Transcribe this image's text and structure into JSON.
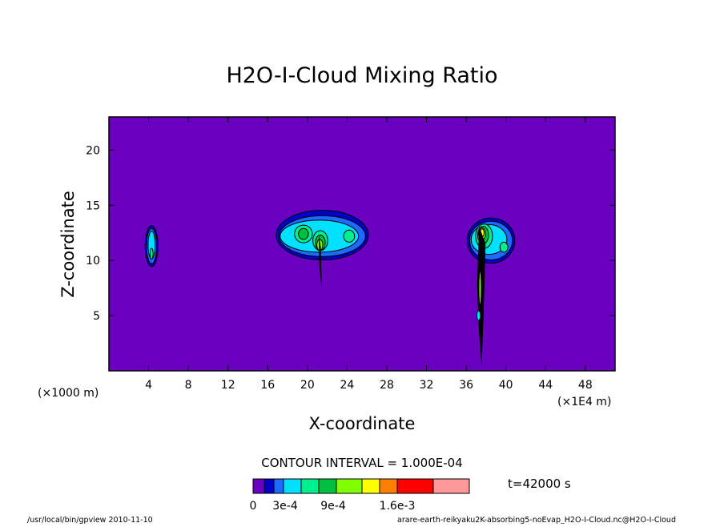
{
  "chart_data": {
    "type": "heatmap",
    "title": "H2O-I-Cloud Mixing Ratio",
    "xlabel": "X-coordinate",
    "ylabel": "Z-coordinate",
    "x_unit": "(×1000 m)",
    "x_unit_right": "(×1E4 m)",
    "xlim": [
      0,
      51
    ],
    "ylim": [
      0,
      23
    ],
    "x_ticks": [
      4,
      8,
      12,
      16,
      20,
      24,
      28,
      32,
      36,
      40,
      44,
      48
    ],
    "y_ticks": [
      5,
      10,
      15,
      20
    ],
    "contour_interval": "CONTOUR INTERVAL = 1.000E-04",
    "time_label": "t=42000 s",
    "colorbar": {
      "levels": [
        0,
        0.0001,
        0.0002,
        0.0003,
        0.0005,
        0.0007,
        0.0009,
        0.0012,
        0.0014,
        0.0016,
        0.002,
        0.0024
      ],
      "colors": [
        "#6a00c0",
        "#0000c8",
        "#1e6aff",
        "#00e0ff",
        "#00f090",
        "#00c040",
        "#80ff00",
        "#ffff00",
        "#ff8000",
        "#ff0000",
        "#ff9898"
      ],
      "tick_labels": [
        "0",
        "3e-4",
        "9e-4",
        "1.6e-3"
      ]
    },
    "background_color": "#6a00c0",
    "features": [
      {
        "name": "small cloud",
        "x": 4.3,
        "z": 11.2,
        "max_level": 4
      },
      {
        "name": "anvil cloud",
        "x": 21.5,
        "z": 12.2,
        "max_level": 6
      },
      {
        "name": "anvil cloud",
        "x": 38.5,
        "z": 11.8,
        "max_level": 7
      },
      {
        "name": "updraft column",
        "x": 21.3,
        "z_range": [
          7.5,
          12.5
        ]
      },
      {
        "name": "updraft column",
        "x": 37.5,
        "z_range": [
          0.5,
          13
        ]
      }
    ]
  },
  "footer": {
    "left": "/usr/local/bin/gpview   2010-11-10",
    "right": "arare-earth-reikyaku2K-absorbing5-noEvap_H2O-I-Cloud.nc@H2O-I-Cloud"
  }
}
